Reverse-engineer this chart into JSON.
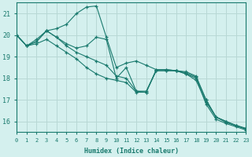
{
  "xlabel": "Humidex (Indice chaleur)",
  "xlim": [
    0,
    23
  ],
  "ylim": [
    15.5,
    21.5
  ],
  "yticks": [
    16,
    17,
    18,
    19,
    20,
    21
  ],
  "xticks": [
    0,
    1,
    2,
    3,
    4,
    5,
    6,
    7,
    8,
    9,
    10,
    11,
    12,
    13,
    14,
    15,
    16,
    17,
    18,
    19,
    20,
    21,
    22,
    23
  ],
  "bg_color": "#d4f0ee",
  "line_color": "#1a7a6e",
  "grid_color": "#b8d8d5",
  "lines": [
    [
      20.0,
      19.5,
      19.8,
      20.2,
      20.3,
      20.5,
      21.0,
      21.3,
      21.35,
      19.9,
      18.5,
      18.7,
      18.8,
      18.6,
      18.4,
      18.4,
      18.35,
      18.2,
      17.9,
      16.9,
      16.2,
      15.95,
      15.8,
      15.65
    ],
    [
      20.0,
      19.5,
      19.7,
      20.2,
      19.9,
      19.6,
      19.4,
      19.5,
      19.9,
      19.8,
      18.0,
      18.5,
      17.4,
      17.4,
      18.35,
      18.35,
      18.35,
      18.3,
      18.1,
      17.0,
      16.2,
      16.0,
      15.82,
      15.68
    ],
    [
      20.0,
      19.5,
      19.7,
      20.2,
      19.9,
      19.5,
      19.2,
      19.0,
      18.8,
      18.6,
      18.1,
      18.0,
      17.4,
      17.35,
      18.4,
      18.4,
      18.35,
      18.25,
      18.05,
      17.0,
      16.2,
      16.0,
      15.8,
      15.65
    ],
    [
      20.0,
      19.5,
      19.6,
      19.8,
      19.5,
      19.2,
      18.9,
      18.5,
      18.2,
      18.0,
      17.9,
      17.8,
      17.35,
      17.35,
      18.35,
      18.35,
      18.35,
      18.2,
      18.0,
      16.8,
      16.1,
      15.9,
      15.75,
      15.6
    ]
  ]
}
